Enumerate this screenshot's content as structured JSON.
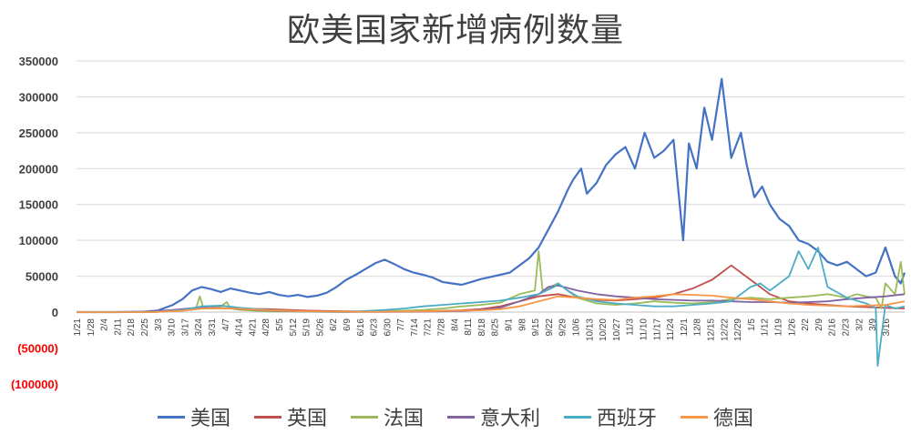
{
  "chart_data": {
    "type": "line",
    "title": "欧美国家新增病例数量",
    "xlabel": "",
    "ylabel": "",
    "ylim": [
      -100000,
      350000
    ],
    "y_ticks": [
      {
        "value": 350000,
        "label": "350000"
      },
      {
        "value": 300000,
        "label": "300000"
      },
      {
        "value": 250000,
        "label": "250000"
      },
      {
        "value": 200000,
        "label": "200000"
      },
      {
        "value": 150000,
        "label": "150000"
      },
      {
        "value": 100000,
        "label": "100000"
      },
      {
        "value": 50000,
        "label": "50000"
      },
      {
        "value": 0,
        "label": "0"
      },
      {
        "value": -50000,
        "label": "(50000)"
      },
      {
        "value": -100000,
        "label": "(100000)"
      }
    ],
    "negative_label_color": "#ff0000",
    "x_tick_labels": [
      "1/21",
      "1/28",
      "2/4",
      "2/11",
      "2/18",
      "2/25",
      "3/3",
      "3/10",
      "3/17",
      "3/24",
      "3/31",
      "4/7",
      "4/14",
      "4/21",
      "4/28",
      "5/5",
      "5/12",
      "5/19",
      "5/26",
      "6/2",
      "6/9",
      "6/16",
      "6/23",
      "6/30",
      "7/7",
      "7/14",
      "7/21",
      "7/28",
      "8/4",
      "8/11",
      "8/18",
      "8/25",
      "9/1",
      "9/8",
      "9/15",
      "9/22",
      "9/29",
      "10/6",
      "10/13",
      "10/20",
      "10/27",
      "11/3",
      "11/10",
      "11/17",
      "11/24",
      "12/1",
      "12/8",
      "12/15",
      "12/22",
      "12/29",
      "1/5",
      "1/12",
      "1/19",
      "1/26",
      "2/2",
      "2/9",
      "2/16",
      "2/23",
      "3/2",
      "3/9",
      "3/16"
    ],
    "x_tick_interval_days": 7,
    "total_days": 430,
    "grid": "horizontal",
    "legend_position": "bottom",
    "series": [
      {
        "name": "美国",
        "color": "#4472c4",
        "x": [
          0,
          20,
          35,
          42,
          50,
          55,
          60,
          65,
          70,
          75,
          80,
          85,
          90,
          95,
          100,
          105,
          110,
          115,
          120,
          125,
          130,
          135,
          140,
          145,
          150,
          155,
          160,
          165,
          170,
          175,
          180,
          185,
          190,
          195,
          200,
          205,
          210,
          215,
          220,
          225,
          230,
          235,
          240,
          245,
          250,
          255,
          258,
          262,
          265,
          270,
          275,
          280,
          285,
          290,
          295,
          300,
          305,
          310,
          315,
          318,
          322,
          326,
          330,
          335,
          340,
          345,
          348,
          352,
          356,
          360,
          365,
          370,
          375,
          380,
          385,
          390,
          395,
          400,
          405,
          410,
          415,
          420,
          425,
          428,
          430
        ],
        "values": [
          0,
          0,
          500,
          2000,
          10000,
          18000,
          30000,
          35000,
          32000,
          28000,
          33000,
          30000,
          27000,
          25000,
          28000,
          24000,
          22000,
          24000,
          21000,
          23000,
          27000,
          35000,
          45000,
          52000,
          60000,
          68000,
          73000,
          67000,
          60000,
          55000,
          52000,
          48000,
          42000,
          40000,
          38000,
          42000,
          46000,
          49000,
          52000,
          55000,
          65000,
          75000,
          90000,
          115000,
          140000,
          170000,
          185000,
          200000,
          165000,
          180000,
          205000,
          220000,
          230000,
          200000,
          250000,
          215000,
          225000,
          240000,
          100000,
          235000,
          200000,
          285000,
          240000,
          325000,
          215000,
          250000,
          205000,
          160000,
          175000,
          150000,
          130000,
          120000,
          100000,
          95000,
          85000,
          70000,
          65000,
          70000,
          60000,
          50000,
          55000,
          90000,
          50000,
          40000,
          55000
        ]
      },
      {
        "name": "英国",
        "color": "#c0504d",
        "x": [
          0,
          40,
          55,
          65,
          75,
          85,
          100,
          120,
          140,
          160,
          180,
          200,
          210,
          220,
          230,
          240,
          250,
          260,
          270,
          280,
          290,
          300,
          310,
          320,
          330,
          335,
          340,
          345,
          350,
          355,
          360,
          370,
          380,
          390,
          400,
          410,
          420,
          430
        ],
        "values": [
          0,
          0,
          2000,
          5000,
          5500,
          5000,
          4000,
          2000,
          1000,
          700,
          1000,
          2500,
          4000,
          8000,
          15000,
          22000,
          25000,
          20000,
          17000,
          16000,
          18000,
          20000,
          25000,
          33000,
          45000,
          55000,
          65000,
          55000,
          45000,
          35000,
          25000,
          15000,
          12000,
          10000,
          8000,
          7000,
          6000,
          5000
        ]
      },
      {
        "name": "法国",
        "color": "#9bbb59",
        "x": [
          0,
          40,
          55,
          62,
          64,
          66,
          70,
          75,
          78,
          80,
          85,
          100,
          120,
          140,
          160,
          170,
          180,
          190,
          200,
          210,
          220,
          230,
          238,
          240,
          242,
          250,
          260,
          270,
          280,
          290,
          300,
          310,
          320,
          330,
          340,
          350,
          360,
          370,
          380,
          390,
          400,
          405,
          410,
          415,
          418,
          420,
          425,
          428,
          430
        ],
        "values": [
          0,
          0,
          3000,
          5000,
          22000,
          5000,
          6000,
          8000,
          14000,
          5000,
          3000,
          1000,
          500,
          500,
          1000,
          2000,
          3000,
          5000,
          8000,
          10000,
          13000,
          25000,
          30000,
          85000,
          30000,
          40000,
          20000,
          12000,
          10000,
          12000,
          15000,
          13000,
          12000,
          14000,
          18000,
          20000,
          18000,
          20000,
          22000,
          25000,
          20000,
          25000,
          22000,
          20000,
          5000,
          40000,
          25000,
          70000,
          25000
        ]
      },
      {
        "name": "意大利",
        "color": "#8064a2",
        "x": [
          0,
          30,
          40,
          50,
          60,
          70,
          80,
          90,
          100,
          120,
          140,
          160,
          180,
          200,
          210,
          220,
          230,
          240,
          245,
          250,
          260,
          270,
          280,
          290,
          300,
          310,
          320,
          330,
          340,
          350,
          360,
          370,
          380,
          390,
          400,
          410,
          420,
          430
        ],
        "values": [
          0,
          0,
          1000,
          3000,
          5500,
          6000,
          5000,
          3500,
          2000,
          500,
          300,
          300,
          500,
          1500,
          3000,
          6000,
          15000,
          25000,
          35000,
          37000,
          30000,
          25000,
          22000,
          20000,
          18000,
          17000,
          16000,
          16000,
          15000,
          14000,
          14000,
          13000,
          14000,
          15000,
          18000,
          20000,
          22000,
          25000
        ]
      },
      {
        "name": "西班牙",
        "color": "#4bacc6",
        "x": [
          0,
          40,
          55,
          65,
          75,
          85,
          100,
          120,
          140,
          160,
          170,
          180,
          190,
          200,
          210,
          220,
          230,
          240,
          248,
          250,
          255,
          260,
          270,
          280,
          290,
          300,
          310,
          320,
          330,
          340,
          345,
          350,
          355,
          360,
          365,
          370,
          375,
          380,
          385,
          390,
          400,
          410,
          415,
          416,
          420,
          425,
          430
        ],
        "values": [
          0,
          0,
          3000,
          8000,
          9000,
          6000,
          3000,
          500,
          0,
          3000,
          5000,
          8000,
          10000,
          12000,
          14000,
          16000,
          20000,
          25000,
          35000,
          40000,
          30000,
          22000,
          15000,
          12000,
          10000,
          8000,
          8000,
          10000,
          12000,
          15000,
          25000,
          35000,
          40000,
          30000,
          40000,
          50000,
          85000,
          60000,
          90000,
          35000,
          20000,
          12000,
          6000,
          -75000,
          10000,
          5000,
          8000
        ]
      },
      {
        "name": "德国",
        "color": "#f79646",
        "x": [
          0,
          40,
          55,
          65,
          75,
          85,
          100,
          120,
          140,
          160,
          180,
          200,
          210,
          220,
          230,
          240,
          250,
          260,
          270,
          280,
          290,
          300,
          310,
          320,
          330,
          340,
          350,
          360,
          370,
          380,
          390,
          400,
          410,
          420,
          430
        ],
        "values": [
          0,
          0,
          2000,
          5000,
          5500,
          4500,
          2500,
          1000,
          500,
          500,
          1000,
          2000,
          2500,
          4000,
          8000,
          15000,
          22000,
          20000,
          18000,
          17000,
          20000,
          22000,
          25000,
          24000,
          23000,
          20000,
          18000,
          15000,
          12000,
          10000,
          9000,
          8000,
          9000,
          10000,
          15000
        ]
      }
    ]
  }
}
